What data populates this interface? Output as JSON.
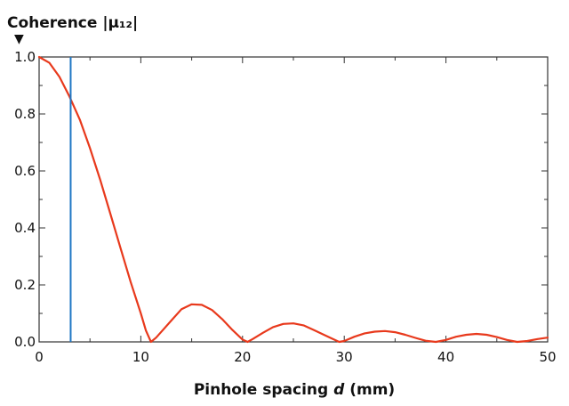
{
  "chart_data": {
    "type": "line",
    "ylabel": "Coherence |μ₁₂|",
    "xlabel_parts": [
      "Pinhole spacing ",
      "d",
      " (mm)"
    ],
    "xlim": [
      0,
      50
    ],
    "ylim": [
      0.0,
      1.0
    ],
    "xticks": [
      0,
      10,
      20,
      30,
      40,
      50
    ],
    "yticks": [
      "0.0",
      "0.2",
      "0.4",
      "0.6",
      "0.8",
      "1.0"
    ],
    "series": [
      {
        "color": "#e8391c",
        "x": [
          0,
          1,
          2,
          3,
          4,
          5,
          6,
          7,
          8,
          9,
          10,
          10.5,
          11,
          11.5,
          12,
          13,
          14,
          15,
          16,
          17,
          18,
          19,
          20,
          20.5,
          21,
          22,
          23,
          24,
          25,
          26,
          27,
          28,
          29,
          29.5,
          30,
          31,
          32,
          33,
          34,
          35,
          36,
          37,
          38,
          39,
          40,
          41,
          42,
          43,
          44,
          45,
          46,
          47,
          48,
          49,
          50
        ],
        "y": [
          1.0,
          0.98,
          0.93,
          0.86,
          0.78,
          0.68,
          0.57,
          0.45,
          0.33,
          0.21,
          0.1,
          0.04,
          0.0,
          0.015,
          0.035,
          0.075,
          0.115,
          0.132,
          0.13,
          0.112,
          0.08,
          0.042,
          0.008,
          0.0,
          0.01,
          0.032,
          0.052,
          0.063,
          0.065,
          0.058,
          0.042,
          0.025,
          0.008,
          0.0,
          0.003,
          0.018,
          0.03,
          0.036,
          0.038,
          0.034,
          0.025,
          0.014,
          0.004,
          0.0,
          0.007,
          0.018,
          0.025,
          0.028,
          0.025,
          0.017,
          0.007,
          0.0,
          0.003,
          0.01,
          0.015
        ]
      }
    ],
    "vertical_marker": {
      "x": 3.1,
      "color": "#1f77c4"
    },
    "indicator": "▼",
    "grid": false
  }
}
